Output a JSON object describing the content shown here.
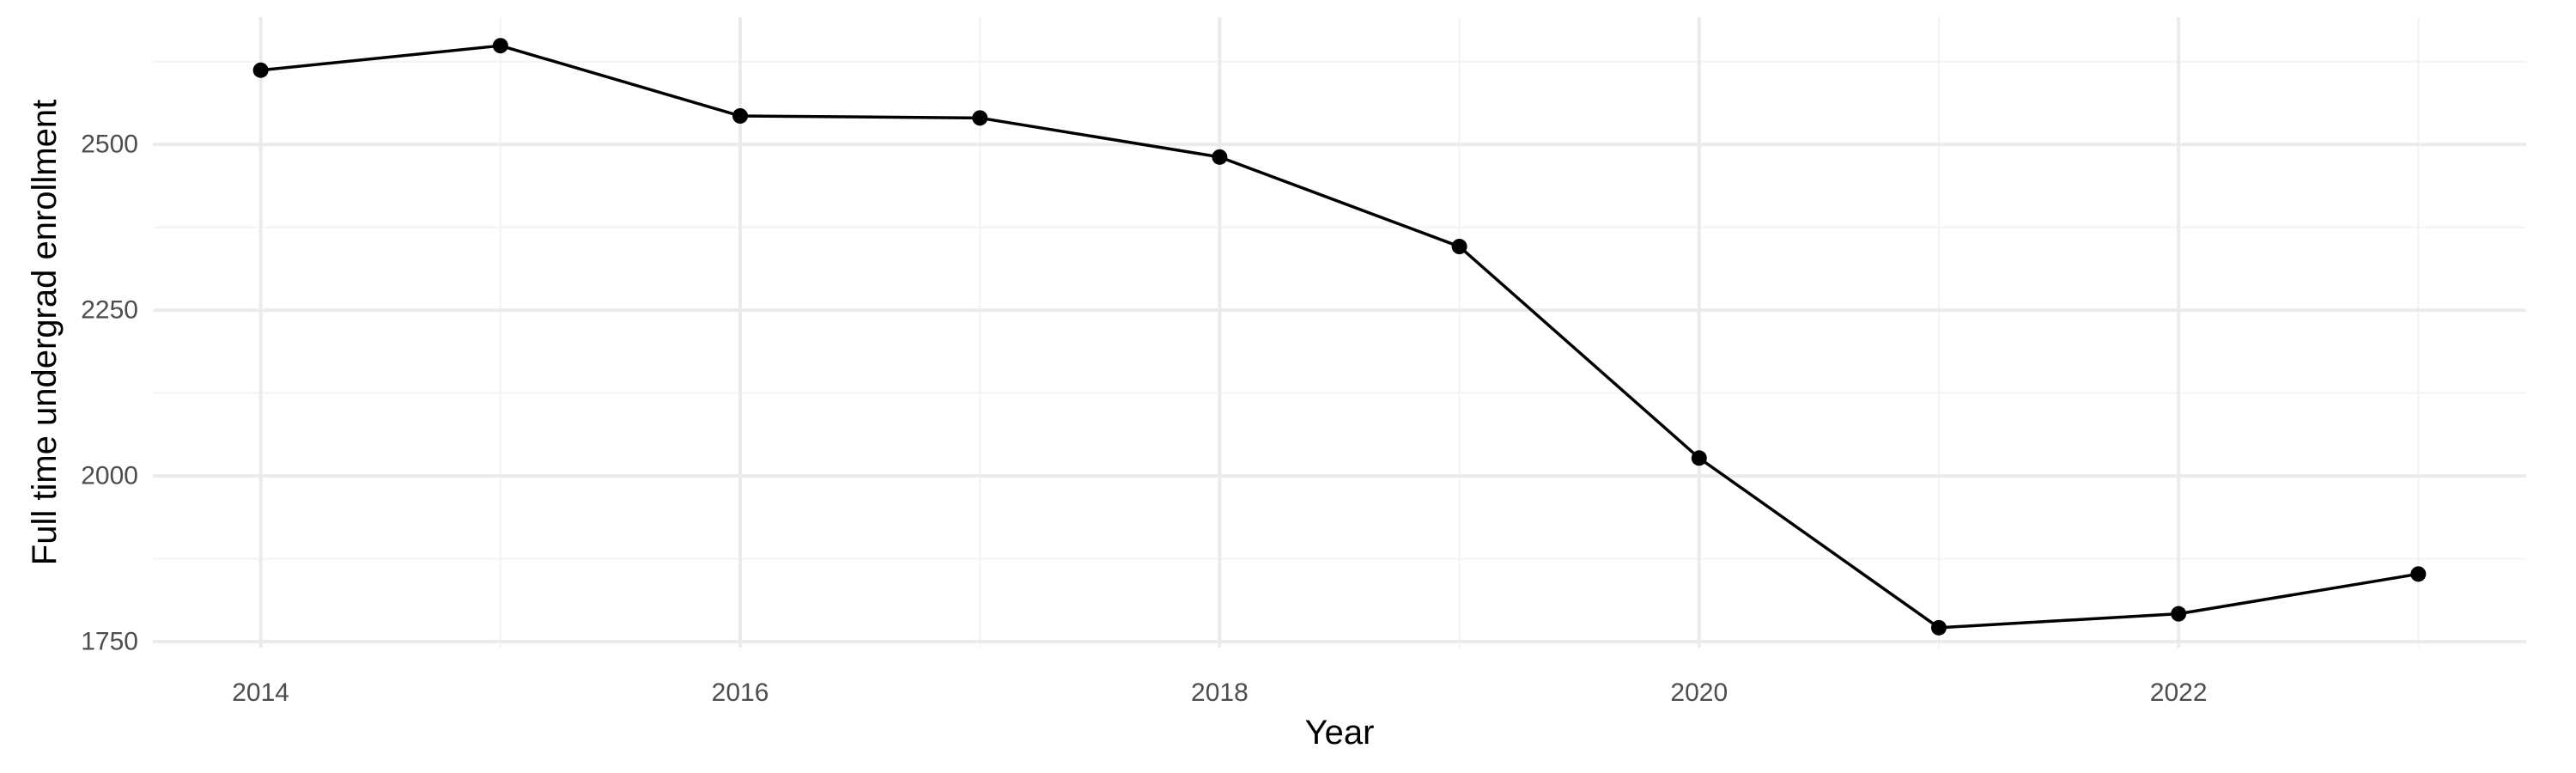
{
  "chart_data": {
    "type": "line",
    "title": "",
    "xlabel": "Year",
    "ylabel": "Full time undergrad enrollment",
    "x": [
      2014,
      2015,
      2016,
      2017,
      2018,
      2019,
      2020,
      2021,
      2022,
      2023
    ],
    "series": [
      {
        "values": [
          2612,
          2649,
          2543,
          2540,
          2481,
          2346,
          2027,
          1771,
          1792,
          1852
        ]
      }
    ],
    "xlim": [
      2013.55,
      2023.45
    ],
    "ylim": [
      1741,
      2692
    ],
    "x_ticks": [
      2014,
      2016,
      2018,
      2020,
      2022
    ],
    "x_tick_labels": [
      "2014",
      "2016",
      "2018",
      "2020",
      "2022"
    ],
    "y_ticks": [
      1750,
      2000,
      2250,
      2500
    ],
    "y_tick_labels": [
      "1750",
      "2000",
      "2250",
      "2500"
    ],
    "x_minor_ticks": [
      2015,
      2017,
      2019,
      2021,
      2023
    ],
    "y_minor_ticks": [
      1875,
      2125,
      2375,
      2625
    ],
    "grid": true,
    "legend": "none",
    "colors": {
      "line": "#000000",
      "point": "#000000",
      "grid_major": "#ebebeb",
      "grid_minor": "#f3f3f3",
      "tick_text": "#4d4d4d",
      "axis_title": "#000000",
      "background": "#ffffff"
    }
  }
}
